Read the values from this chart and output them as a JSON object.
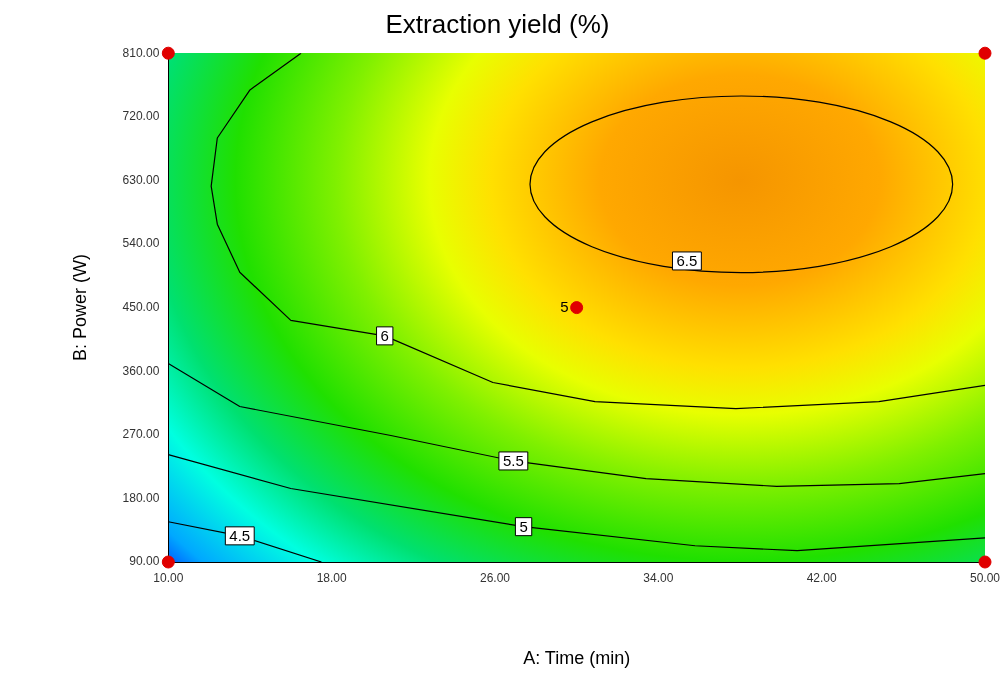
{
  "chart_data": {
    "type": "line",
    "title": "Extraction yield (%)",
    "xlabel": "A: Time (min)",
    "ylabel": "B: Power (W)",
    "xlim": [
      10,
      50
    ],
    "ylim": [
      90,
      810
    ],
    "xticks": [
      {
        "value": 10,
        "label": "10.00"
      },
      {
        "value": 18,
        "label": "18.00"
      },
      {
        "value": 26,
        "label": "26.00"
      },
      {
        "value": 34,
        "label": "34.00"
      },
      {
        "value": 42,
        "label": "42.00"
      },
      {
        "value": 50,
        "label": "50.00"
      }
    ],
    "yticks": [
      {
        "value": 90,
        "label": "90.00"
      },
      {
        "value": 180,
        "label": "180.00"
      },
      {
        "value": 270,
        "label": "270.00"
      },
      {
        "value": 360,
        "label": "360.00"
      },
      {
        "value": 450,
        "label": "450.00"
      },
      {
        "value": 540,
        "label": "540.00"
      },
      {
        "value": 630,
        "label": "630.00"
      },
      {
        "value": 720,
        "label": "720.00"
      },
      {
        "value": 810,
        "label": "810.00"
      }
    ],
    "grid": false,
    "legend": false,
    "marker": "none",
    "line_style": "solid",
    "series": [
      {
        "color": "#000000",
        "x": [
          16.5,
          14,
          12.4,
          12.1,
          12.4,
          13.5,
          16,
          20.6,
          25.9,
          30.9,
          37.8,
          44.8,
          50
        ],
        "values": [
          810,
          758,
          690,
          622,
          568,
          500,
          432,
          410,
          344,
          317,
          307,
          317,
          340
        ]
      },
      {
        "color": "#000000",
        "x": [
          10,
          13.5,
          20.9,
          26.9,
          33.4,
          39.8,
          45.8,
          50
        ],
        "values": [
          371,
          310,
          269,
          233,
          208,
          197,
          201,
          215
        ]
      },
      {
        "color": "#000000",
        "x": [
          10,
          16,
          27.4,
          35.8,
          40.8,
          50
        ],
        "values": [
          242,
          194,
          140,
          113,
          106,
          124
        ]
      },
      {
        "color": "#000000",
        "x": [
          10,
          13.5,
          17.5
        ],
        "values": [
          147,
          127,
          90
        ]
      },
      {
        "type": "scatter",
        "color": "#e00000",
        "marker": "circle",
        "x": [
          10,
          50,
          10,
          50,
          30
        ],
        "values": [
          810,
          810,
          90,
          90,
          450
        ]
      }
    ],
    "annotations": [
      {
        "text": "6.5",
        "x": 35.4,
        "y": 516
      },
      {
        "text": "6",
        "x": 20.6,
        "y": 410
      },
      {
        "text": "5.5",
        "x": 26.9,
        "y": 233
      },
      {
        "text": "5",
        "x": 27.4,
        "y": 140
      },
      {
        "text": "4.5",
        "x": 13.5,
        "y": 127
      },
      {
        "text": "5",
        "x": 30,
        "y": 450
      }
    ]
  }
}
